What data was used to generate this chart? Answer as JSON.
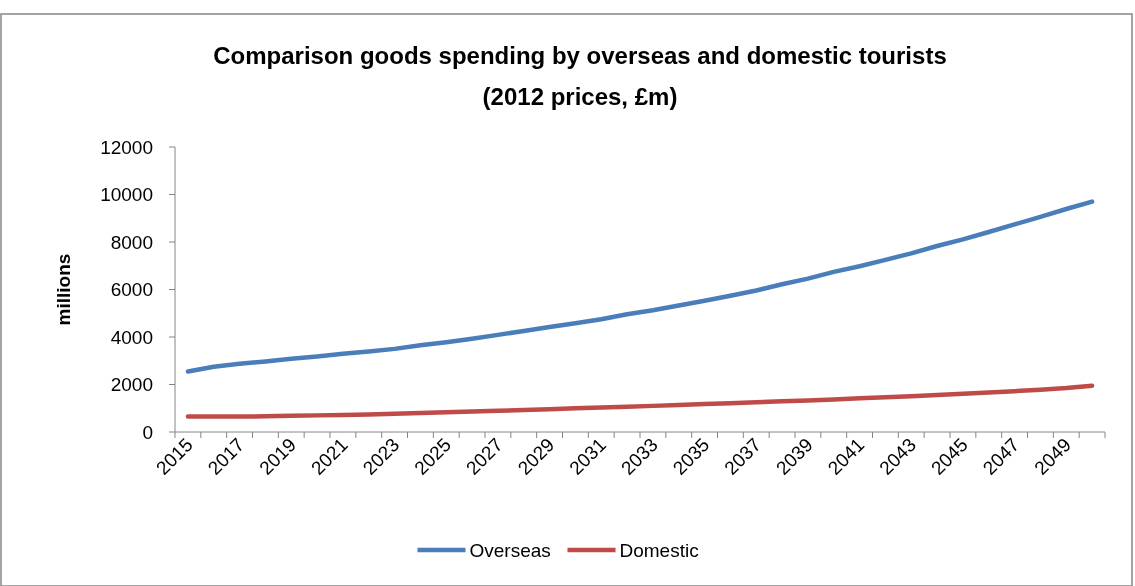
{
  "chart_data": {
    "type": "line",
    "title": "Comparison goods spending by overseas and domestic tourists",
    "subtitle": "(2012 prices, £m)",
    "ylabel": "millions",
    "categories": [
      "2015",
      null,
      "2017",
      null,
      "2019",
      null,
      "2021",
      null,
      "2023",
      null,
      "2025",
      null,
      "2027",
      null,
      "2029",
      null,
      "2031",
      null,
      "2033",
      null,
      "2035",
      null,
      "2037",
      null,
      "2039",
      null,
      "2041",
      null,
      "2043",
      null,
      "2045",
      null,
      "2047",
      null,
      "2049",
      null
    ],
    "series": [
      {
        "name": "Overseas",
        "color": "#4a7ebb",
        "values": [
          2550,
          2750,
          2870,
          2970,
          3080,
          3180,
          3290,
          3390,
          3500,
          3650,
          3780,
          3930,
          4090,
          4250,
          4420,
          4580,
          4750,
          4960,
          5130,
          5330,
          5530,
          5740,
          5960,
          6220,
          6460,
          6740,
          6980,
          7250,
          7520,
          7830,
          8110,
          8420,
          8740,
          9060,
          9390,
          9700
        ]
      },
      {
        "name": "Domestic",
        "color": "#be4b48",
        "values": [
          650,
          650,
          650,
          660,
          680,
          700,
          720,
          740,
          770,
          800,
          830,
          860,
          890,
          930,
          960,
          1000,
          1030,
          1060,
          1100,
          1140,
          1180,
          1210,
          1250,
          1290,
          1330,
          1370,
          1420,
          1460,
          1510,
          1560,
          1610,
          1660,
          1720,
          1780,
          1850,
          1950
        ]
      }
    ],
    "ylim": [
      0,
      12000
    ],
    "yticks": [
      0,
      2000,
      4000,
      6000,
      8000,
      10000,
      12000
    ],
    "grid": false,
    "legend": "bottom",
    "marker": "none",
    "line_style": "solid"
  }
}
